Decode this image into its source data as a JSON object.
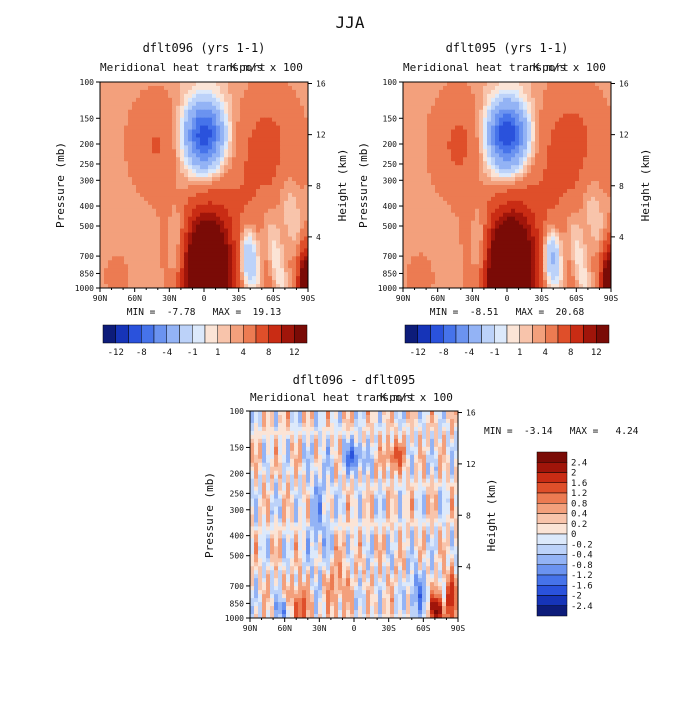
{
  "season": "JJA",
  "colors": {
    "seq_top": [
      "#0d1c7a",
      "#1634b8",
      "#2a52dc",
      "#4673ea",
      "#6b93f0",
      "#93b3f5",
      "#bcd2f9",
      "#dce9fb",
      "#fbe4d6",
      "#f8c4ab",
      "#f3a07c",
      "#ec7b52",
      "#df4f2a",
      "#c92c14",
      "#a0150a",
      "#7a0b06"
    ],
    "seq_diff": [
      "#0d1c7a",
      "#1634b8",
      "#2a52dc",
      "#4673ea",
      "#6b93f0",
      "#93b3f5",
      "#bcd2f9",
      "#dce9fb",
      "#fbe4d6",
      "#f8c4ab",
      "#f3a07c",
      "#ec7b52",
      "#df4f2a",
      "#c92c14",
      "#a0150a",
      "#7a0b06"
    ]
  },
  "panels": {
    "p1": {
      "title": "dflt096 (yrs 1-1)",
      "subtitle": "Meridional heat transport",
      "units": "K m/s x 100",
      "stats": "MIN =  -7.78   MAX =  19.13"
    },
    "p2": {
      "title": "dflt095 (yrs 1-1)",
      "subtitle": "Meridional heat transport",
      "units": "K m/s x 100",
      "stats": "MIN =  -8.51   MAX =  20.68"
    },
    "p3": {
      "title": "dflt096 - dflt095",
      "subtitle": "Meridional heat transport",
      "units": "K m/s x 100",
      "stats": "MIN =  -3.14   MAX =   4.24"
    }
  },
  "axes": {
    "ylabel": "Pressure (mb)",
    "y2label": "Height (km)",
    "xticks": [
      "90N",
      "60N",
      "30N",
      "0",
      "30S",
      "60S",
      "90S"
    ],
    "pticks": [
      "100",
      "150",
      "200",
      "250",
      "300",
      "400",
      "500",
      "700",
      "850",
      "1000"
    ],
    "hticks": [
      "16",
      "12",
      "8",
      "4"
    ]
  },
  "colorbars": {
    "top": {
      "labels": [
        "-12",
        "-8",
        "-4",
        "-1",
        "1",
        "4",
        "8",
        "12"
      ]
    },
    "diff": {
      "labels": [
        "2.4",
        "2",
        "1.6",
        "1.2",
        "0.8",
        "0.4",
        "0.2",
        "0",
        "-0.2",
        "-0.4",
        "-0.8",
        "-1.2",
        "-1.6",
        "-2",
        "-2.4"
      ]
    }
  },
  "chart_data": [
    {
      "type": "heatmap",
      "title": "dflt096 (yrs 1-1)",
      "subtitle": "Meridional heat transport",
      "units": "K m/s x 100",
      "xlabel": "",
      "ylabel": "Pressure (mb)",
      "y2label": "Height (km)",
      "x_range": [
        "90N",
        "90S"
      ],
      "y_range_mb": [
        100,
        1000
      ],
      "y2_range_km": [
        0,
        16
      ],
      "min": -7.78,
      "max": 19.13,
      "contour_levels": [
        -12,
        -10,
        -8,
        -6,
        -4,
        -2,
        -1,
        -0.5,
        0,
        0.5,
        1,
        2,
        4,
        6,
        8,
        10,
        12
      ],
      "features": [
        {
          "lat": 0,
          "p_mb": 210,
          "value": -7,
          "kind": "minimum"
        },
        {
          "lat": 0,
          "p_mb": 950,
          "value": 19,
          "kind": "maximum"
        },
        {
          "lat": -85,
          "p_mb": 980,
          "value": 10,
          "kind": "maximum"
        },
        {
          "lat": 20,
          "p_mb": 800,
          "value": -3,
          "kind": "minimum"
        }
      ]
    },
    {
      "type": "heatmap",
      "title": "dflt095 (yrs 1-1)",
      "subtitle": "Meridional heat transport",
      "units": "K m/s x 100",
      "xlabel": "",
      "ylabel": "Pressure (mb)",
      "y2label": "Height (km)",
      "x_range": [
        "90N",
        "90S"
      ],
      "y_range_mb": [
        100,
        1000
      ],
      "y2_range_km": [
        0,
        16
      ],
      "min": -8.51,
      "max": 20.68,
      "contour_levels": [
        -12,
        -10,
        -8,
        -6,
        -4,
        -2,
        -1,
        -0.5,
        0,
        0.5,
        1,
        2,
        4,
        6,
        8,
        10,
        12
      ],
      "features": [
        {
          "lat": 0,
          "p_mb": 210,
          "value": -8,
          "kind": "minimum"
        },
        {
          "lat": 0,
          "p_mb": 950,
          "value": 20,
          "kind": "maximum"
        },
        {
          "lat": -85,
          "p_mb": 980,
          "value": 11,
          "kind": "maximum"
        },
        {
          "lat": 20,
          "p_mb": 800,
          "value": -3,
          "kind": "minimum"
        }
      ]
    },
    {
      "type": "heatmap",
      "title": "dflt096 - dflt095",
      "subtitle": "Meridional heat transport",
      "units": "K m/s x 100",
      "xlabel": "",
      "ylabel": "Pressure (mb)",
      "y2label": "Height (km)",
      "x_range": [
        "90N",
        "90S"
      ],
      "y_range_mb": [
        100,
        1000
      ],
      "y2_range_km": [
        0,
        16
      ],
      "min": -3.14,
      "max": 4.24,
      "contour_levels": [
        -2.4,
        -2,
        -1.6,
        -1.2,
        -0.8,
        -0.4,
        -0.2,
        0,
        0.2,
        0.4,
        0.8,
        1.2,
        1.6,
        2,
        2.4
      ],
      "features": [
        {
          "lat": -72,
          "p_mb": 960,
          "value": 2.4,
          "kind": "maximum"
        },
        {
          "lat": 0,
          "p_mb": 190,
          "value": -1.2,
          "kind": "minimum"
        },
        {
          "lat": -35,
          "p_mb": 180,
          "value": 1.2,
          "kind": "maximum"
        },
        {
          "lat": 45,
          "p_mb": 940,
          "value": 1.6,
          "kind": "maximum"
        }
      ]
    }
  ]
}
